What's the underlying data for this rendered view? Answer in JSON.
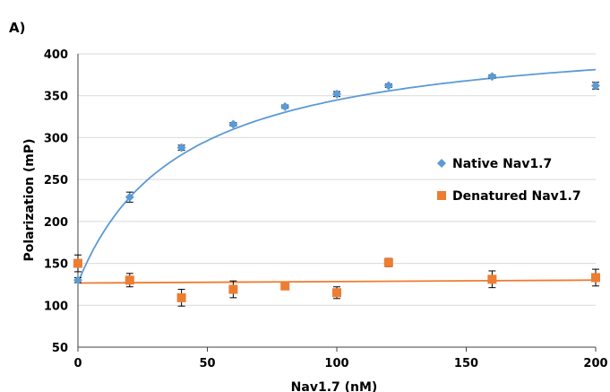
{
  "panel_label": "A)",
  "chart_data": {
    "type": "scatter",
    "title": "",
    "xlabel": "Nav1.7 (nM)",
    "ylabel": "Polarization (mP)",
    "xlim": [
      0,
      200
    ],
    "ylim": [
      50,
      400
    ],
    "x_ticks": [
      0,
      50,
      100,
      150,
      200
    ],
    "y_ticks": [
      50,
      100,
      150,
      200,
      250,
      300,
      350,
      400
    ],
    "grid": "horizontal",
    "legend_position": "right-center",
    "series": [
      {
        "name": "Native Nav1.7",
        "color": "#5b9bd5",
        "marker": "diamond",
        "x": [
          0,
          20,
          40,
          60,
          80,
          100,
          120,
          160,
          200
        ],
        "y": [
          130,
          229,
          288,
          316,
          337,
          352,
          362,
          373,
          362
        ],
        "error": [
          3,
          6,
          3,
          2,
          2,
          3,
          2,
          2,
          4
        ],
        "trendline": {
          "type": "hyperbolic",
          "from": 0,
          "to": 200,
          "y0": 127,
          "bmax": 305,
          "kd": 40
        }
      },
      {
        "name": "Denatured Nav1.7",
        "color": "#ed7d31",
        "marker": "square",
        "x": [
          0,
          20,
          40,
          60,
          80,
          100,
          120,
          160,
          200
        ],
        "y": [
          150,
          130,
          109,
          119,
          123,
          115,
          151,
          131,
          133
        ],
        "error": [
          10,
          8,
          10,
          10,
          3,
          7,
          5,
          10,
          10
        ],
        "trendline": {
          "type": "linear",
          "from": 0,
          "to": 200,
          "start": 126.5,
          "end": 130
        }
      }
    ]
  }
}
